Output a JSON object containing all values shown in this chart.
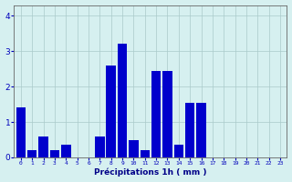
{
  "categories": [
    0,
    1,
    2,
    3,
    4,
    5,
    6,
    7,
    8,
    9,
    10,
    11,
    12,
    13,
    14,
    15,
    16,
    17,
    18,
    19,
    20,
    21,
    22,
    23
  ],
  "values": [
    1.4,
    0.2,
    0.6,
    0.2,
    0.35,
    0.0,
    0.0,
    0.6,
    2.6,
    3.2,
    0.5,
    0.2,
    2.45,
    2.45,
    0.35,
    1.55,
    1.55,
    0.0,
    0.0,
    0.0,
    0.0,
    0.0,
    0.0,
    0.0
  ],
  "bar_color": "#0000cc",
  "background_color": "#d6f0f0",
  "grid_color": "#aacaca",
  "xlabel": "Précipitations 1h ( mm )",
  "ylim": [
    0,
    4.3
  ],
  "yticks": [
    0,
    1,
    2,
    3,
    4
  ],
  "tick_label_color": "#0000bb",
  "xlabel_color": "#000088",
  "spine_color": "#666666"
}
